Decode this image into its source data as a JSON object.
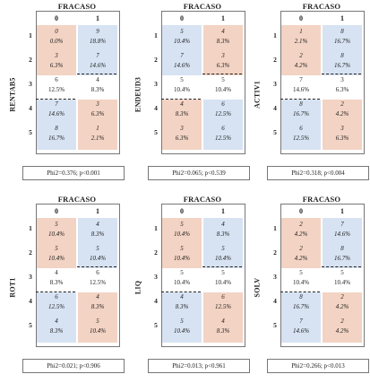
{
  "header_label": "FRACASO",
  "col_labels": [
    "0",
    "1"
  ],
  "row_labels": [
    "1",
    "2",
    "3",
    "4",
    "5"
  ],
  "colors": {
    "pink": "#f3d3c3",
    "blue": "#d7e3f3",
    "white": "#ffffff",
    "border": "#777777"
  },
  "panels": [
    {
      "name": "RENTAB5",
      "stat": "Phi2=0.376; p<0.001",
      "cells": [
        [
          "0",
          "9"
        ],
        [
          "0.0%",
          "18.8%"
        ],
        [
          "3",
          "7"
        ],
        [
          "6.3%",
          "14.6%"
        ],
        [
          "6",
          "4"
        ],
        [
          "12.5%",
          "8.3%"
        ],
        [
          "7",
          "3"
        ],
        [
          "14.6%",
          "6.3%"
        ],
        [
          "8",
          "1"
        ],
        [
          "16.7%",
          "2.1%"
        ]
      ],
      "top_colors": [
        "pink",
        "blue"
      ],
      "bottom_colors": [
        "blue",
        "pink"
      ]
    },
    {
      "name": "ENDEUD3",
      "stat": "Phi2=0.065; p<0.539",
      "cells": [
        [
          "5",
          "4"
        ],
        [
          "10.4%",
          "8.3%"
        ],
        [
          "7",
          "3"
        ],
        [
          "14.6%",
          "6.3%"
        ],
        [
          "5",
          "5"
        ],
        [
          "10.4%",
          "10.4%"
        ],
        [
          "4",
          "6"
        ],
        [
          "8.3%",
          "12.5%"
        ],
        [
          "3",
          "6"
        ],
        [
          "6.3%",
          "12.5%"
        ]
      ],
      "top_colors": [
        "blue",
        "pink"
      ],
      "bottom_colors": [
        "pink",
        "blue"
      ]
    },
    {
      "name": "ACTIV1",
      "stat": "Phi2=0.318; p<0.004",
      "cells": [
        [
          "1",
          "8"
        ],
        [
          "2.1%",
          "16.7%"
        ],
        [
          "2",
          "8"
        ],
        [
          "4.2%",
          "16.7%"
        ],
        [
          "7",
          "3"
        ],
        [
          "14.6%",
          "6.3%"
        ],
        [
          "8",
          "2"
        ],
        [
          "16.7%",
          "4.2%"
        ],
        [
          "6",
          "3"
        ],
        [
          "12.5%",
          "6.3%"
        ]
      ],
      "top_colors": [
        "pink",
        "blue"
      ],
      "bottom_colors": [
        "blue",
        "pink"
      ]
    },
    {
      "name": "ROT1",
      "stat": "Phi2=0.021; p<0.906",
      "cells": [
        [
          "5",
          "4"
        ],
        [
          "10.4%",
          "8.3%"
        ],
        [
          "5",
          "5"
        ],
        [
          "10.4%",
          "10.4%"
        ],
        [
          "4",
          "6"
        ],
        [
          "8.3%",
          "12.5%"
        ],
        [
          "6",
          "4"
        ],
        [
          "12.5%",
          "8.3%"
        ],
        [
          "4",
          "5"
        ],
        [
          "8.3%",
          "10.4%"
        ]
      ],
      "top_colors": [
        "pink",
        "blue"
      ],
      "bottom_colors": [
        "blue",
        "pink"
      ]
    },
    {
      "name": "LIQ",
      "stat": "Phi2=0.013; p<0.961",
      "cells": [
        [
          "5",
          "4"
        ],
        [
          "10.4%",
          "8.3%"
        ],
        [
          "5",
          "5"
        ],
        [
          "10.4%",
          "10.4%"
        ],
        [
          "5",
          "5"
        ],
        [
          "10.4%",
          "10.4%"
        ],
        [
          "4",
          "6"
        ],
        [
          "8.3%",
          "12.5%"
        ],
        [
          "5",
          "4"
        ],
        [
          "10.4%",
          "8.3%"
        ]
      ],
      "top_colors": [
        "pink",
        "blue"
      ],
      "bottom_colors": [
        "blue",
        "pink"
      ]
    },
    {
      "name": "SOLV",
      "stat": "Phi2=0.266; p<0.013",
      "cells": [
        [
          "2",
          "7"
        ],
        [
          "4.2%",
          "14.6%"
        ],
        [
          "2",
          "8"
        ],
        [
          "4.2%",
          "16.7%"
        ],
        [
          "5",
          "5"
        ],
        [
          "10.4%",
          "10.4%"
        ],
        [
          "8",
          "2"
        ],
        [
          "16.7%",
          "4.2%"
        ],
        [
          "7",
          "2"
        ],
        [
          "14.6%",
          "4.2%"
        ]
      ],
      "top_colors": [
        "pink",
        "blue"
      ],
      "bottom_colors": [
        "blue",
        "pink"
      ]
    }
  ]
}
